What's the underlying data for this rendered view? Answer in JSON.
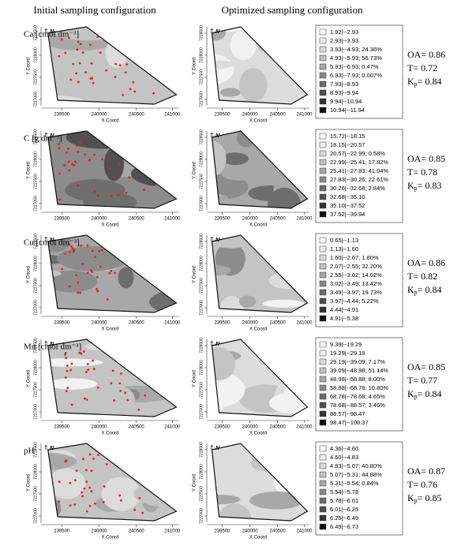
{
  "headers": [
    "Initial sampling configuration",
    "Optimized sampling configuration"
  ],
  "north": "N",
  "axes": {
    "x_label": "X Coord",
    "y_label": "Y Coord",
    "x_ticks": [
      239500,
      240000,
      240500,
      241000
    ],
    "y_ticks": [
      7227000,
      7227500,
      7228000,
      7228500
    ]
  },
  "rows": [
    {
      "label": "Ca [cmol dm⁻³]",
      "legend": [
        "1.92|--2.93",
        "2.93|--3.93",
        "3.93|--4.93; 24.36%",
        "4.93|--5.93; 56.73%",
        "5.93|--6.93; 0.47%",
        "6.93|--7.93; 0.007%",
        "7.93|--8.93",
        "8.93|--9.94",
        "9.94|--10.94",
        "10.94|--11.94"
      ],
      "oa": "OA= 0.86",
      "t": "T= 0.72",
      "kp": {
        "symbol": "K",
        "sub": "p",
        "value": "= 0.84"
      }
    },
    {
      "label": "C [g dm⁻³]",
      "legend": [
        "15.72|--18.15",
        "18.15|--20.57",
        "20.57|--22.99; 0.58%",
        "22.99|--25.41; 17.82%",
        "25.41|--27.83; 41.04%",
        "27.83|--30.26; 22.61%",
        "30.26|--32.68; 2.84%",
        "32.68|--35.10",
        "35.10|--37.52",
        "37.52|--39.94"
      ],
      "oa": "OA= 0.85",
      "t": "T= 0.78",
      "kp": {
        "symbol": "K",
        "sub": "p",
        "value": "= 0.83"
      }
    },
    {
      "label": "Cu [cmol dm⁻³]",
      "legend": [
        "0.65|--1.13",
        "1.13|--1.60",
        "1.60|--2.07; 1.80%",
        "2.07|--2.55; 32.20%",
        "2.55|--3.02; 14.02%",
        "3.02|--3.49; 13.42%",
        "3.49|--3.97; 19.73%",
        "3.97|--4.44; 5.22%",
        "4.44|--4.91",
        "4.91|--5.38"
      ],
      "oa": "OA= 0.86",
      "t": "T= 0.82",
      "kp": {
        "symbol": "K",
        "sub": "p",
        "value": "= 0.84"
      }
    },
    {
      "label": "Mn [cmol dm⁻³]",
      "legend": [
        "9.39|--19.29",
        "19.29|--29.19",
        "29.19|--39.09; 7.17%",
        "39.09|--48.98; 51.14%",
        "48.98|--58.88; 8.00%",
        "58.88|--68.78; 10.80%",
        "68.78|--78.68; 4.65%",
        "78.68|--88.57; 3.46%",
        "88.57|--98.47",
        "98.47|--108.37"
      ],
      "oa": "OA= 0.85",
      "t": "T= 0.77",
      "kp": {
        "symbol": "K",
        "sub": "p",
        "value": "= 0.84"
      }
    },
    {
      "label": "pH",
      "legend": [
        "4.36|--4.60",
        "4.60|--4.83",
        "4.83|--5.07; 40.80%",
        "5.07|--5.31; 44.88%",
        "5.31|--5.54; 0.84%",
        "5.54|--5.78",
        "5.78|--6.01",
        "6.01|--6.25",
        "6.25|--6.49",
        "6.49|--6.73"
      ],
      "oa": "OA= 0.87",
      "t": "T= 0.76",
      "kp": {
        "symbol": "K",
        "sub": "p",
        "value": "= 0.85"
      }
    }
  ]
}
